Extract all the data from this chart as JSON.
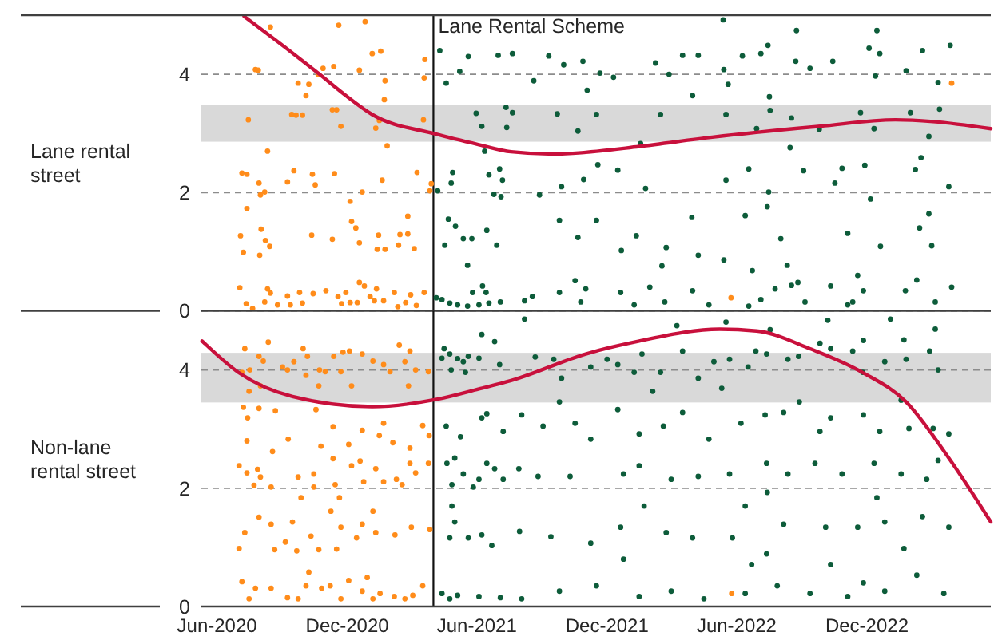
{
  "chart_data": [
    {
      "type": "scatter",
      "ylabel": "Lane rental street",
      "xlim": [
        "2020-05-10",
        "2023-05-24"
      ],
      "ylim": [
        0,
        5
      ],
      "yticks": [
        0,
        2,
        4
      ],
      "tick_labels": "y",
      "grid": "y",
      "ref_lines": [
        {
          "axis": "x",
          "value": "2021-04-01",
          "label": "Lane Rental Scheme"
        }
      ],
      "bands": [
        {
          "axis": "y",
          "from": 2.86,
          "to": 3.48,
          "color": "#d9d9d9"
        }
      ],
      "series": [
        {
          "color": "#ff8c1a",
          "x": [
            "2020-08-15",
            "2020-11-19",
            "2020-12-26",
            "2021-01-17",
            "2021-01-05",
            "2021-03-20",
            "2020-07-25",
            "2020-07-29",
            "2020-10-21",
            "2020-10-28",
            "2020-11-12",
            "2020-12-18",
            "2021-01-23",
            "2021-03-19",
            "2020-09-23",
            "2020-10-08",
            "2020-10-04",
            "2021-01-22",
            "2020-07-15",
            "2020-09-14",
            "2020-09-20",
            "2020-09-29",
            "2020-11-10",
            "2020-11-16",
            "2020-11-22",
            "2021-01-10",
            "2021-01-15",
            "2021-03-18",
            "2021-01-26",
            "2020-08-11",
            "2020-07-06",
            "2020-07-13",
            "2020-07-30",
            "2020-08-07",
            "2020-08-01",
            "2020-09-17",
            "2020-09-08",
            "2020-10-13",
            "2020-11-13",
            "2020-10-17",
            "2021-01-19",
            "2020-12-22",
            "2021-03-09",
            "2021-03-29",
            "2021-03-27",
            "2020-12-05",
            "2020-07-13",
            "2021-02-24",
            "2020-12-07",
            "2020-12-13",
            "2020-08-02",
            "2020-07-04",
            "2020-10-12",
            "2020-11-10",
            "2021-01-14",
            "2021-02-13",
            "2021-02-24",
            "2020-08-08",
            "2020-08-14",
            "2020-07-08",
            "2020-07-31",
            "2020-12-18",
            "2021-01-12",
            "2021-01-23",
            "2021-02-11",
            "2021-03-05",
            "2020-07-03",
            "2020-08-11",
            "2020-08-15",
            "2020-09-08",
            "2020-09-25",
            "2020-10-14",
            "2020-11-01",
            "2020-11-29",
            "2020-12-18",
            "2020-12-25",
            "2021-01-11",
            "2021-02-05",
            "2021-02-28",
            "2021-03-19",
            "2020-07-12",
            "2020-08-07",
            "2020-08-25",
            "2020-09-12",
            "2020-09-29",
            "2020-11-23",
            "2020-12-05",
            "2020-12-15",
            "2021-01-08",
            "2021-01-21",
            "2021-02-10",
            "2021-02-21",
            "2021-03-08",
            "2020-11-18",
            "2021-01-02",
            "2020-07-21",
            "2022-05-24",
            "2023-03-30"
          ],
          "values": [
            4.8,
            4.83,
            4.89,
            4.39,
            4.35,
            4.25,
            4.08,
            4.07,
            4.0,
            4.1,
            4.13,
            4.07,
            3.89,
            3.94,
            3.85,
            3.83,
            3.64,
            3.57,
            3.23,
            3.32,
            3.31,
            3.31,
            3.4,
            3.4,
            3.12,
            3.09,
            3.22,
            3.23,
            2.79,
            2.7,
            2.33,
            2.31,
            2.16,
            2.01,
            1.96,
            2.37,
            2.18,
            2.31,
            2.32,
            2.13,
            2.21,
            2.01,
            2.34,
            2.15,
            2.03,
            1.85,
            1.73,
            1.6,
            1.51,
            1.4,
            1.38,
            1.27,
            1.28,
            1.21,
            1.28,
            1.29,
            1.3,
            1.19,
            1.09,
            0.99,
            0.94,
            1.15,
            1.04,
            1.04,
            1.11,
            1.05,
            0.39,
            0.37,
            0.3,
            0.25,
            0.31,
            0.29,
            0.34,
            0.31,
            0.48,
            0.42,
            0.37,
            0.31,
            0.27,
            0.31,
            0.12,
            0.15,
            0.1,
            0.1,
            0.13,
            0.12,
            0.14,
            0.14,
            0.17,
            0.17,
            0.07,
            0.14,
            0.09,
            0.24,
            0.24,
            0.04,
            0.22,
            3.85
          ]
        },
        {
          "color": "#0d5c3a",
          "x": [
            "2021-04-10",
            "2021-05-20",
            "2021-07-01",
            "2021-05-08",
            "2021-04-19",
            "2021-05-31",
            "2021-06-08",
            "2021-07-12",
            "2021-07-13",
            "2021-06-12",
            "2021-04-28",
            "2021-04-26",
            "2021-04-07",
            "2021-06-18",
            "2021-07-03",
            "2021-07-07",
            "2021-07-05",
            "2021-06-25",
            "2021-04-22",
            "2021-05-02",
            "2021-05-25",
            "2021-05-13",
            "2021-04-17",
            "2021-06-15",
            "2021-06-29",
            "2021-05-19",
            "2021-06-09",
            "2021-06-14",
            "2021-04-13",
            "2021-04-24",
            "2021-05-05",
            "2021-05-19",
            "2021-06-04",
            "2021-06-18",
            "2021-07-04",
            "2021-04-05",
            "2021-05-26",
            "2021-07-21",
            "2021-09-10",
            "2021-10-01",
            "2021-10-28",
            "2021-11-21",
            "2021-12-10",
            "2021-11-03",
            "2021-08-20",
            "2022-02-07",
            "2022-02-26",
            "2022-03-17",
            "2022-04-08",
            "2022-03-31",
            "2022-05-14",
            "2022-05-20",
            "2022-06-09",
            "2022-07-05",
            "2022-07-15",
            "2022-08-23",
            "2022-09-12",
            "2022-10-14",
            "2022-12-04",
            "2022-12-19",
            "2022-12-13",
            "2023-01-25",
            "2023-02-17",
            "2023-03-11",
            "2023-03-28",
            "2022-07-17",
            "2022-05-13",
            "2022-08-24",
            "2022-12-15",
            "2021-07-21",
            "2021-09-22",
            "2021-10-21",
            "2021-11-16",
            "2022-02-14",
            "2022-05-17",
            "2022-06-29",
            "2022-07-18",
            "2022-08-17",
            "2022-09-25",
            "2022-11-22",
            "2022-12-11",
            "2023-01-31",
            "2023-03-13",
            "2023-02-26",
            "2022-08-15",
            "2022-01-17",
            "2021-12-16",
            "2021-09-28",
            "2021-10-29",
            "2021-11-18",
            "2022-01-24",
            "2022-05-17",
            "2022-06-18",
            "2022-07-16",
            "2022-09-03",
            "2022-10-17",
            "2022-10-27",
            "2022-11-28",
            "2022-12-06",
            "2023-02-07",
            "2023-02-15",
            "2023-03-26",
            "2021-08-28",
            "2021-09-25",
            "2021-10-21",
            "2021-11-16",
            "2021-12-21",
            "2022-01-11",
            "2022-02-22",
            "2022-04-08",
            "2022-03-30",
            "2022-05-14",
            "2022-06-13",
            "2022-07-14",
            "2022-08-02",
            "2022-08-11",
            "2022-11-04",
            "2022-12-20",
            "2023-02-13",
            "2023-02-26",
            "2023-03-02",
            "2022-11-18",
            "2022-02-16",
            "2022-06-23",
            "2022-08-17",
            "2021-08-07",
            "2021-08-18",
            "2021-09-25",
            "2021-10-17",
            "2021-11-01",
            "2021-12-20",
            "2022-01-08",
            "2022-01-30",
            "2022-02-20",
            "2022-03-31",
            "2022-04-23",
            "2022-06-18",
            "2022-07-05",
            "2022-07-25",
            "2022-08-26",
            "2022-09-05",
            "2022-10-11",
            "2022-11-11",
            "2022-11-26",
            "2023-01-24",
            "2023-02-09",
            "2023-03-07",
            "2023-03-30",
            "2021-10-25",
            "2022-11-04"
          ],
          "values": [
            4.4,
            4.3,
            4.32,
            4.05,
            3.85,
            3.34,
            3.12,
            3.44,
            3.1,
            2.7,
            2.34,
            2.16,
            2.03,
            2.3,
            2.4,
            2.21,
            1.93,
            1.97,
            1.55,
            1.43,
            1.22,
            1.22,
            1.11,
            1.36,
            1.11,
            0.77,
            0.42,
            0.31,
            0.19,
            0.13,
            0.1,
            0.08,
            0.1,
            0.13,
            0.15,
            0.22,
            0.31,
            4.35,
            4.31,
            4.16,
            4.22,
            4.02,
            3.95,
            3.73,
            3.89,
            4.19,
            4.0,
            4.32,
            4.32,
            3.64,
            4.08,
            3.83,
            4.31,
            4.35,
            4.49,
            4.22,
            4.1,
            4.22,
            4.44,
            4.35,
            3.97,
            4.06,
            4.4,
            3.86,
            4.49,
            3.62,
            4.92,
            4.74,
            4.74,
            3.35,
            3.33,
            3.04,
            3.32,
            3.32,
            3.32,
            3.08,
            3.39,
            3.26,
            3.07,
            3.35,
            3.08,
            3.35,
            3.41,
            2.95,
            2.76,
            2.83,
            2.38,
            2.1,
            2.22,
            2.47,
            2.07,
            2.21,
            2.4,
            2.01,
            2.37,
            2.16,
            2.41,
            2.46,
            1.89,
            2.39,
            2.59,
            2.1,
            1.96,
            1.53,
            1.24,
            1.53,
            1.02,
            1.27,
            1.07,
            0.94,
            1.58,
            0.86,
            1.61,
            1.76,
            1.22,
            0.77,
            1.31,
            1.09,
            1.4,
            1.64,
            1.1,
            0.6,
            0.76,
            0.68,
            0.43,
            0.17,
            0.24,
            0.31,
            0.51,
            0.37,
            0.31,
            0.1,
            0.4,
            0.15,
            0.34,
            0.1,
            0.08,
            0.19,
            0.37,
            0.48,
            0.15,
            0.42,
            0.15,
            0.34,
            0.34,
            0.52,
            0.15,
            0.4,
            0.15,
            0.1
          ]
        },
        {
          "type": "line",
          "color": "#c8103c",
          "x": [
            "2020-07-09",
            "2020-09-15",
            "2020-10-23",
            "2020-11-29",
            "2021-01-05",
            "2021-04-04",
            "2021-06-04",
            "2021-07-19",
            "2021-09-17",
            "2021-11-01",
            "2022-01-15",
            "2022-04-30",
            "2022-09-26",
            "2023-01-10",
            "2023-03-04",
            "2023-05-24"
          ],
          "values": [
            4.98,
            4.36,
            4.0,
            3.64,
            3.32,
            2.99,
            2.81,
            2.69,
            2.65,
            2.68,
            2.78,
            2.94,
            3.12,
            3.23,
            3.2,
            3.08
          ]
        }
      ]
    },
    {
      "type": "scatter",
      "ylabel": "Non-lane rental street",
      "xlim": [
        "2020-05-10",
        "2023-05-24"
      ],
      "xticks": [
        {
          "value": "2020-06-01",
          "label": "Jun-2020"
        },
        {
          "value": "2020-12-01",
          "label": "Dec-2020"
        },
        {
          "value": "2021-06-01",
          "label": "Jun-2021"
        },
        {
          "value": "2021-12-01",
          "label": "Dec-2021"
        },
        {
          "value": "2022-06-01",
          "label": "Jun-2022"
        },
        {
          "value": "2022-12-01",
          "label": "Dec-2022"
        }
      ],
      "ylim": [
        0,
        5
      ],
      "yticks": [
        0,
        2,
        4
      ],
      "grid": "y",
      "ref_lines": [
        {
          "axis": "x",
          "value": "2021-04-01"
        }
      ],
      "bands": [
        {
          "axis": "y",
          "from": 3.45,
          "to": 4.29,
          "color": "#d9d9d9"
        }
      ],
      "series": [
        {
          "color": "#ff8c1a",
          "x": [
            "2020-07-10",
            "2020-07-30",
            "2020-08-12",
            "2020-08-05",
            "2020-09-08",
            "2020-09-17",
            "2020-09-30",
            "2020-10-06",
            "2020-10-23",
            "2020-11-12",
            "2020-11-25",
            "2020-12-04",
            "2020-12-22",
            "2021-01-06",
            "2021-01-21",
            "2021-02-12",
            "2021-02-27",
            "2021-02-20",
            "2021-03-07",
            "2020-11-22",
            "2020-10-31",
            "2020-09-01",
            "2020-07-17",
            "2020-07-06",
            "2020-12-07",
            "2020-10-22",
            "2020-10-04",
            "2021-01-30",
            "2021-02-25",
            "2021-03-25",
            "2020-07-16",
            "2020-08-01",
            "2020-07-08",
            "2020-07-14",
            "2020-07-30",
            "2020-08-22",
            "2020-10-18",
            "2020-11-11",
            "2020-12-22",
            "2021-01-21",
            "2021-01-15",
            "2021-03-17",
            "2021-03-26",
            "2020-07-13",
            "2020-08-18",
            "2020-09-09",
            "2020-10-25",
            "2020-12-03",
            "2021-02-03",
            "2021-02-27",
            "2020-07-02",
            "2020-07-13",
            "2020-07-28",
            "2020-08-01",
            "2020-07-23",
            "2020-08-16",
            "2020-09-23",
            "2020-10-15",
            "2020-11-11",
            "2020-12-07",
            "2020-12-19",
            "2021-01-10",
            "2021-01-21",
            "2021-02-08",
            "2021-02-27",
            "2021-03-07",
            "2021-03-25",
            "2020-11-14",
            "2020-10-15",
            "2020-12-24",
            "2021-02-16",
            "2020-09-27",
            "2020-11-20",
            "2020-07-10",
            "2020-07-30",
            "2020-08-16",
            "2020-09-05",
            "2020-09-15",
            "2020-10-11",
            "2020-10-22",
            "2020-11-16",
            "2020-11-22",
            "2020-12-14",
            "2020-12-22",
            "2021-01-10",
            "2021-01-06",
            "2021-02-06",
            "2021-03-01",
            "2021-03-27",
            "2020-07-02",
            "2020-08-21",
            "2020-09-21",
            "2020-11-08",
            "2020-07-06",
            "2020-07-25",
            "2020-08-16",
            "2020-09-08",
            "2020-10-08",
            "2020-10-04",
            "2020-10-26",
            "2020-11-22",
            "2020-12-03",
            "2020-12-22",
            "2020-12-29",
            "2021-01-16",
            "2021-02-05",
            "2021-03-03",
            "2021-03-17",
            "2020-07-16",
            "2020-09-23",
            "2020-11-07",
            "2021-01-06",
            "2021-02-20",
            "2022-05-25"
          ],
          "values": [
            4.36,
            4.23,
            4.47,
            4.15,
            4.0,
            4.14,
            4.36,
            4.23,
            4.0,
            4.23,
            4.3,
            4.32,
            4.27,
            4.15,
            4.09,
            4.42,
            4.32,
            4.14,
            4.0,
            3.97,
            3.97,
            4.05,
            4.0,
            3.96,
            3.73,
            3.73,
            3.91,
            3.97,
            3.73,
            3.97,
            3.64,
            3.73,
            3.37,
            3.19,
            3.35,
            3.31,
            3.33,
            3.04,
            2.98,
            3.1,
            2.89,
            3.06,
            2.89,
            2.8,
            2.62,
            2.83,
            2.71,
            2.74,
            2.77,
            2.68,
            2.38,
            2.26,
            2.32,
            2.19,
            2.05,
            2.02,
            2.19,
            2.24,
            2.5,
            2.38,
            2.46,
            2.33,
            2.11,
            2.15,
            2.42,
            2.26,
            2.42,
            2.06,
            2.02,
            2.11,
            2.06,
            1.84,
            1.84,
            1.25,
            1.51,
            1.39,
            1.09,
            1.43,
            1.19,
            0.96,
            0.97,
            1.34,
            1.16,
            1.39,
            1.25,
            1.61,
            1.21,
            1.34,
            1.3,
            0.98,
            0.96,
            0.94,
            1.61,
            0.42,
            0.31,
            0.31,
            0.15,
            0.58,
            0.35,
            0.31,
            0.13,
            0.44,
            0.26,
            0.49,
            0.22,
            0.17,
            0.19,
            0.35,
            0.13,
            0.13,
            0.35,
            0.13,
            0.13,
            0.22
          ]
        },
        {
          "color": "#0d5c3a",
          "x": [
            "2021-04-13",
            "2021-04-24",
            "2021-05-05",
            "2021-05-13",
            "2021-05-20",
            "2021-06-04",
            "2021-07-03",
            "2021-04-16",
            "2021-04-26",
            "2021-05-16",
            "2021-06-08",
            "2021-06-15",
            "2021-05-09",
            "2021-04-19",
            "2021-07-08",
            "2021-04-20",
            "2021-05-01",
            "2021-05-13",
            "2021-06-04",
            "2021-06-15",
            "2021-06-26",
            "2021-07-08",
            "2021-04-27",
            "2021-05-27",
            "2021-04-27",
            "2021-05-01",
            "2021-04-24",
            "2021-05-20",
            "2021-06-08",
            "2021-06-22",
            "2021-04-13",
            "2021-04-24",
            "2021-05-05",
            "2021-06-04",
            "2021-07-04",
            "2021-06-08",
            "2021-06-26",
            "2021-08-07",
            "2022-03-09",
            "2022-05-17",
            "2022-07-18",
            "2022-10-07",
            "2023-01-03",
            "2023-01-22",
            "2023-03-07",
            "2022-11-26",
            "2022-09-26",
            "2021-08-22",
            "2021-09-17",
            "2021-09-28",
            "2021-11-08",
            "2021-12-01",
            "2021-12-16",
            "2022-01-08",
            "2022-01-19",
            "2022-02-14",
            "2022-03-17",
            "2022-04-08",
            "2022-04-30",
            "2022-05-11",
            "2022-05-22",
            "2022-06-17",
            "2022-06-28",
            "2022-07-13",
            "2022-08-12",
            "2022-08-27",
            "2022-10-11",
            "2022-11-11",
            "2022-11-25",
            "2022-12-26",
            "2023-01-25",
            "2023-02-27",
            "2023-03-11",
            "2021-09-25",
            "2022-02-03",
            "2023-01-18",
            "2022-08-28",
            "2021-08-03",
            "2021-09-02",
            "2021-10-17",
            "2021-11-08",
            "2021-12-16",
            "2022-01-15",
            "2022-02-18",
            "2022-03-17",
            "2022-04-23",
            "2022-06-07",
            "2022-07-11",
            "2022-08-06",
            "2022-09-26",
            "2022-10-11",
            "2022-11-26",
            "2022-12-19",
            "2023-01-29",
            "2023-03-04",
            "2023-03-26",
            "2021-07-30",
            "2021-08-26",
            "2021-10-10",
            "2021-12-24",
            "2022-01-15",
            "2022-03-01",
            "2022-04-08",
            "2022-05-22",
            "2022-07-13",
            "2022-08-12",
            "2022-09-19",
            "2022-10-27",
            "2022-12-11",
            "2023-01-18",
            "2023-02-23",
            "2023-03-11",
            "2022-06-13",
            "2022-07-14",
            "2022-12-15",
            "2021-07-31",
            "2021-09-13",
            "2021-11-08",
            "2021-12-20",
            "2022-01-22",
            "2022-02-22",
            "2022-03-31",
            "2022-05-26",
            "2022-07-13",
            "2022-08-06",
            "2022-10-04",
            "2022-11-18",
            "2022-12-26",
            "2023-02-17",
            "2023-03-26",
            "2021-12-24",
            "2022-06-22",
            "2022-10-11",
            "2023-01-22",
            "2021-08-03",
            "2021-09-25",
            "2021-11-16",
            "2022-01-15",
            "2022-03-01",
            "2022-04-16",
            "2022-06-13",
            "2022-07-28",
            "2022-09-12",
            "2022-11-04",
            "2022-12-26",
            "2023-02-09",
            "2023-03-19",
            "2022-11-26"
          ],
          "values": [
            4.2,
            4.27,
            4.19,
            4.14,
            4.23,
            4.2,
            4.09,
            4.36,
            4.0,
            3.96,
            3.19,
            3.26,
            2.87,
            3.05,
            2.96,
            2.42,
            2.51,
            2.24,
            2.15,
            2.42,
            2.33,
            2.15,
            2.06,
            2.02,
            1.7,
            1.43,
            1.16,
            1.16,
            1.21,
            1.03,
            0.22,
            0.13,
            0.19,
            0.17,
            0.15,
            4.6,
            4.48,
            4.86,
            4.75,
            4.81,
            4.68,
            4.84,
            4.86,
            4.51,
            4.69,
            4.5,
            4.45,
            4.22,
            4.18,
            3.86,
            4.05,
            4.18,
            4.09,
            3.96,
            4.27,
            3.96,
            4.32,
            3.86,
            4.14,
            3.69,
            4.18,
            4.05,
            4.32,
            4.27,
            4.18,
            4.23,
            4.36,
            4.32,
            3.96,
            4.14,
            4.18,
            4.32,
            4.0,
            3.46,
            3.64,
            3.49,
            3.46,
            3.24,
            3.05,
            3.1,
            2.83,
            3.33,
            2.92,
            3.05,
            3.28,
            2.83,
            3.1,
            3.24,
            3.28,
            2.96,
            3.19,
            3.24,
            2.96,
            3.01,
            3.01,
            2.92,
            2.33,
            2.2,
            2.2,
            2.24,
            2.38,
            2.15,
            2.2,
            2.24,
            2.42,
            2.24,
            2.42,
            2.24,
            2.42,
            2.24,
            2.15,
            2.47,
            1.7,
            1.93,
            1.84,
            1.27,
            1.18,
            1.07,
            1.34,
            1.7,
            1.25,
            1.16,
            1.16,
            0.89,
            1.39,
            1.34,
            1.34,
            1.43,
            1.52,
            1.34,
            0.8,
            0.71,
            0.71,
            0.98,
            0.13,
            0.26,
            0.35,
            0.17,
            0.26,
            0.13,
            0.22,
            0.35,
            0.22,
            0.17,
            0.26,
            0.53,
            0.22,
            0.4
          ]
        },
        {
          "type": "line",
          "color": "#c8103c",
          "x": [
            "2020-05-11",
            "2020-07-02",
            "2020-09-15",
            "2021-01-05",
            "2021-04-04",
            "2021-06-04",
            "2021-07-19",
            "2021-11-01",
            "2022-01-15",
            "2022-05-08",
            "2022-06-29",
            "2022-09-12",
            "2022-11-26",
            "2023-01-25",
            "2023-03-26",
            "2023-05-24"
          ],
          "values": [
            4.49,
            3.95,
            3.55,
            3.38,
            3.5,
            3.68,
            3.82,
            4.27,
            4.49,
            4.69,
            4.66,
            4.36,
            3.95,
            3.46,
            2.51,
            1.43
          ]
        }
      ]
    }
  ]
}
